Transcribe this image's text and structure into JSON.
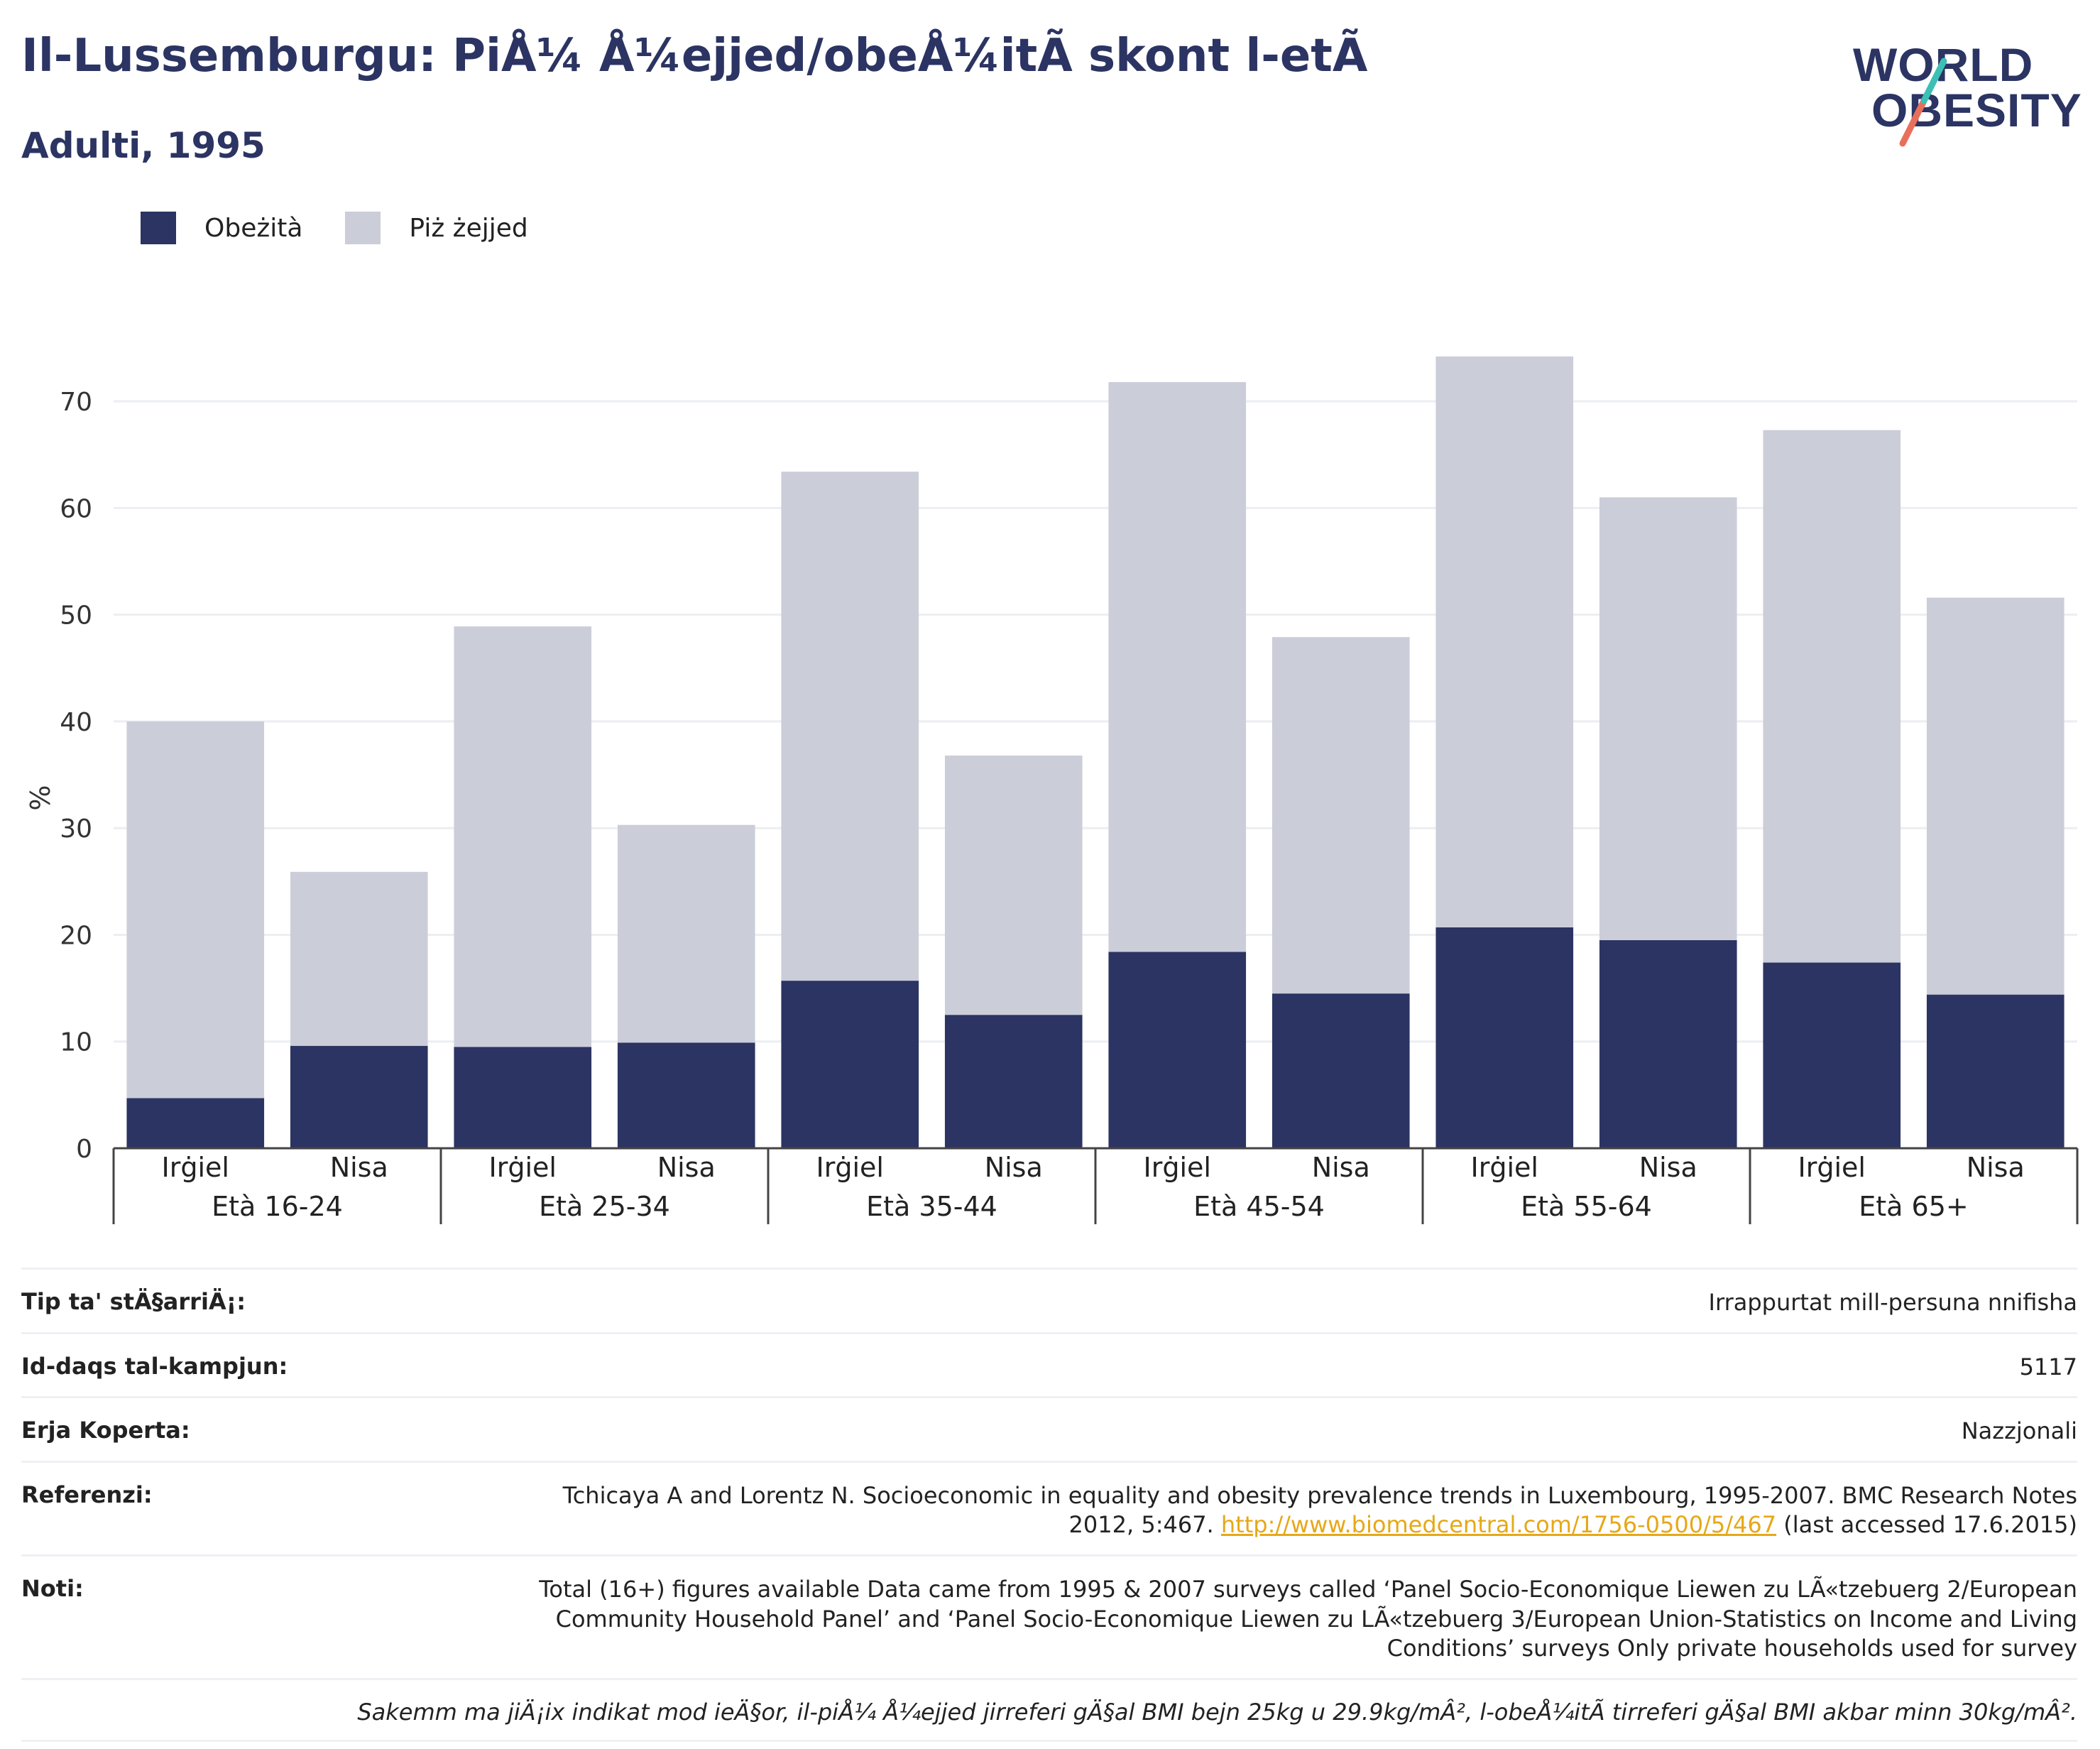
{
  "title": "Il-Lussemburgu: PiÅ¼ Å¼ejjed/obeÅ¼itÃ  skont l-etÃ",
  "subtitle": "Adulti, 1995",
  "logo": {
    "line1": "WORLD",
    "line2": "OBESITY"
  },
  "legend": [
    {
      "label": "Obeżità",
      "color": "#2b3462"
    },
    {
      "label": "Piż żejjed",
      "color": "#cbcdd9"
    }
  ],
  "chart_data": {
    "type": "bar",
    "stacked": true,
    "ylabel": "%",
    "ylim": [
      0,
      75
    ],
    "yticks": [
      0,
      10,
      20,
      30,
      40,
      50,
      60,
      70
    ],
    "grid": true,
    "legend_position": "top-left",
    "groups": [
      "Età 16-24",
      "Età 25-34",
      "Età 35-44",
      "Età 45-54",
      "Età 55-64",
      "Età 65+"
    ],
    "categories": [
      "Irġiel",
      "Nisa",
      "Irġiel",
      "Nisa",
      "Irġiel",
      "Nisa",
      "Irġiel",
      "Nisa",
      "Irġiel",
      "Nisa",
      "Irġiel",
      "Nisa"
    ],
    "series": [
      {
        "name": "Obeżità",
        "color": "#2b3462",
        "values": [
          4.7,
          9.6,
          9.5,
          9.9,
          15.7,
          12.5,
          18.4,
          14.5,
          20.7,
          19.5,
          17.4,
          14.4
        ]
      },
      {
        "name": "Piż żejjed",
        "color": "#cbcdd9",
        "values": [
          35.3,
          16.3,
          39.4,
          20.4,
          47.7,
          24.3,
          53.4,
          33.4,
          53.5,
          41.5,
          49.9,
          37.2
        ]
      }
    ]
  },
  "meta": {
    "survey_type_label": "Tip ta' stÄ§arriÄ¡:",
    "survey_type_value": "Irrappurtat mill-persuna nnifisha",
    "sample_label": "Id-daqs tal-kampjun:",
    "sample_value": "5117",
    "area_label": "Erja Koperta:",
    "area_value": "Nazzjonali",
    "ref_label": "Referenzi:",
    "ref_text": "Tchicaya A and Lorentz N. Socioeconomic in equality and obesity prevalence trends in Luxembourg, 1995-2007. BMC Research Notes 2012, 5:467.",
    "ref_link": "http://www.biomedcentral.com/1756-0500/5/467",
    "ref_suffix": "(last accessed 17.6.2015)",
    "notes_label": "Noti:",
    "notes_value": "Total (16+) figures available Data came from 1995 & 2007 surveys called ‘Panel Socio-Economique Liewen zu LÃ«tzebuerg 2/European Community Household Panel’ and ‘Panel Socio-Economique Liewen zu LÃ«tzebuerg 3/European Union-Statistics on Income and Living Conditions’ surveys Only private households used for survey",
    "footnote": "Sakemm ma jiÄ¡ix indikat mod ieÄ§or, il-piÅ¼ Å¼ejjed jirreferi gÄ§al BMI bejn 25kg u 29.9kg/mÂ², l-obeÅ¼itÃ  tirreferi gÄ§al BMI akbar minn 30kg/mÂ²."
  },
  "colors": {
    "obese": "#2b3462",
    "overweight": "#cbcdd9",
    "brand": "#2b3462",
    "logo_teal": "#3cbfb4",
    "logo_coral": "#e8705a",
    "link": "#e6a817"
  }
}
